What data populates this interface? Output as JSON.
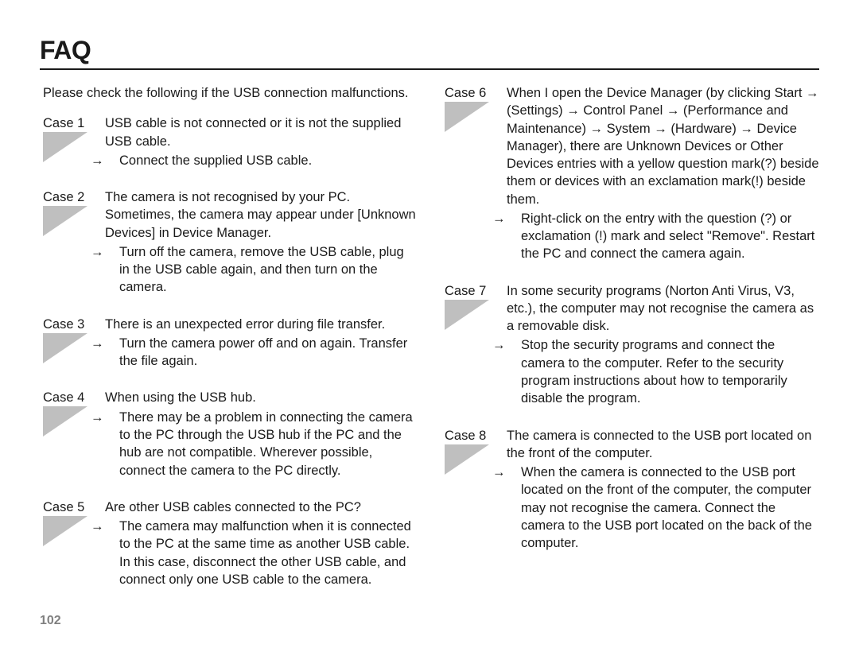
{
  "title": "FAQ",
  "intro": "Please check the following if the USB connection malfunctions.",
  "page_number": "102",
  "arrow_glyph": "→ ",
  "cases_left": [
    {
      "label": "Case 1",
      "desc": "USB cable is not connected or it is not the supplied USB cable.",
      "action": "Connect the supplied USB cable."
    },
    {
      "label": "Case 2",
      "desc": "The camera is not recognised by your PC. Sometimes, the camera may appear under [Unknown Devices] in Device Manager.",
      "action": "Turn off the camera, remove the USB cable, plug in the USB cable again, and then turn on the camera."
    },
    {
      "label": "Case 3",
      "desc": "There is an unexpected error during file transfer.",
      "action": "Turn the camera power off and on again. Transfer the file again."
    },
    {
      "label": "Case 4",
      "desc": "When using the USB hub.",
      "action": "There may be a problem in connecting the camera to the PC through the USB hub if the PC and the hub are not compatible. Wherever possible, connect the camera to the PC directly."
    },
    {
      "label": "Case 5",
      "desc": "Are other USB cables connected to the PC?",
      "action": "The camera may malfunction when it is connected to the PC at the same time as another USB cable. In this case, disconnect the other USB cable, and connect only one USB cable to the camera."
    }
  ],
  "cases_right": [
    {
      "label": "Case 6",
      "desc": "When I open the Device Manager (by clicking Start → (Settings) → Control Panel → (Performance and Maintenance) → System → (Hardware) → Device Manager), there are Unknown Devices or Other Devices entries with a yellow question mark(?) beside them or devices with an exclamation mark(!) beside them.",
      "action": "Right-click on the entry with the question (?) or exclamation (!) mark and select \"Remove\". Restart the PC and connect the camera again."
    },
    {
      "label": "Case 7",
      "desc": "In some security programs (Norton Anti Virus, V3, etc.), the computer may not recognise the camera as a removable disk.",
      "action": "Stop the security programs and connect the camera to the computer. Refer to the security program instructions about how to temporarily disable the program."
    },
    {
      "label": "Case 8",
      "desc": "The camera is connected to the USB port located on the front of the computer.",
      "action": "When the camera is connected to the USB port located on the front of the computer, the computer may not recognise the camera. Connect the camera to the USB port located on the back of the computer."
    }
  ]
}
